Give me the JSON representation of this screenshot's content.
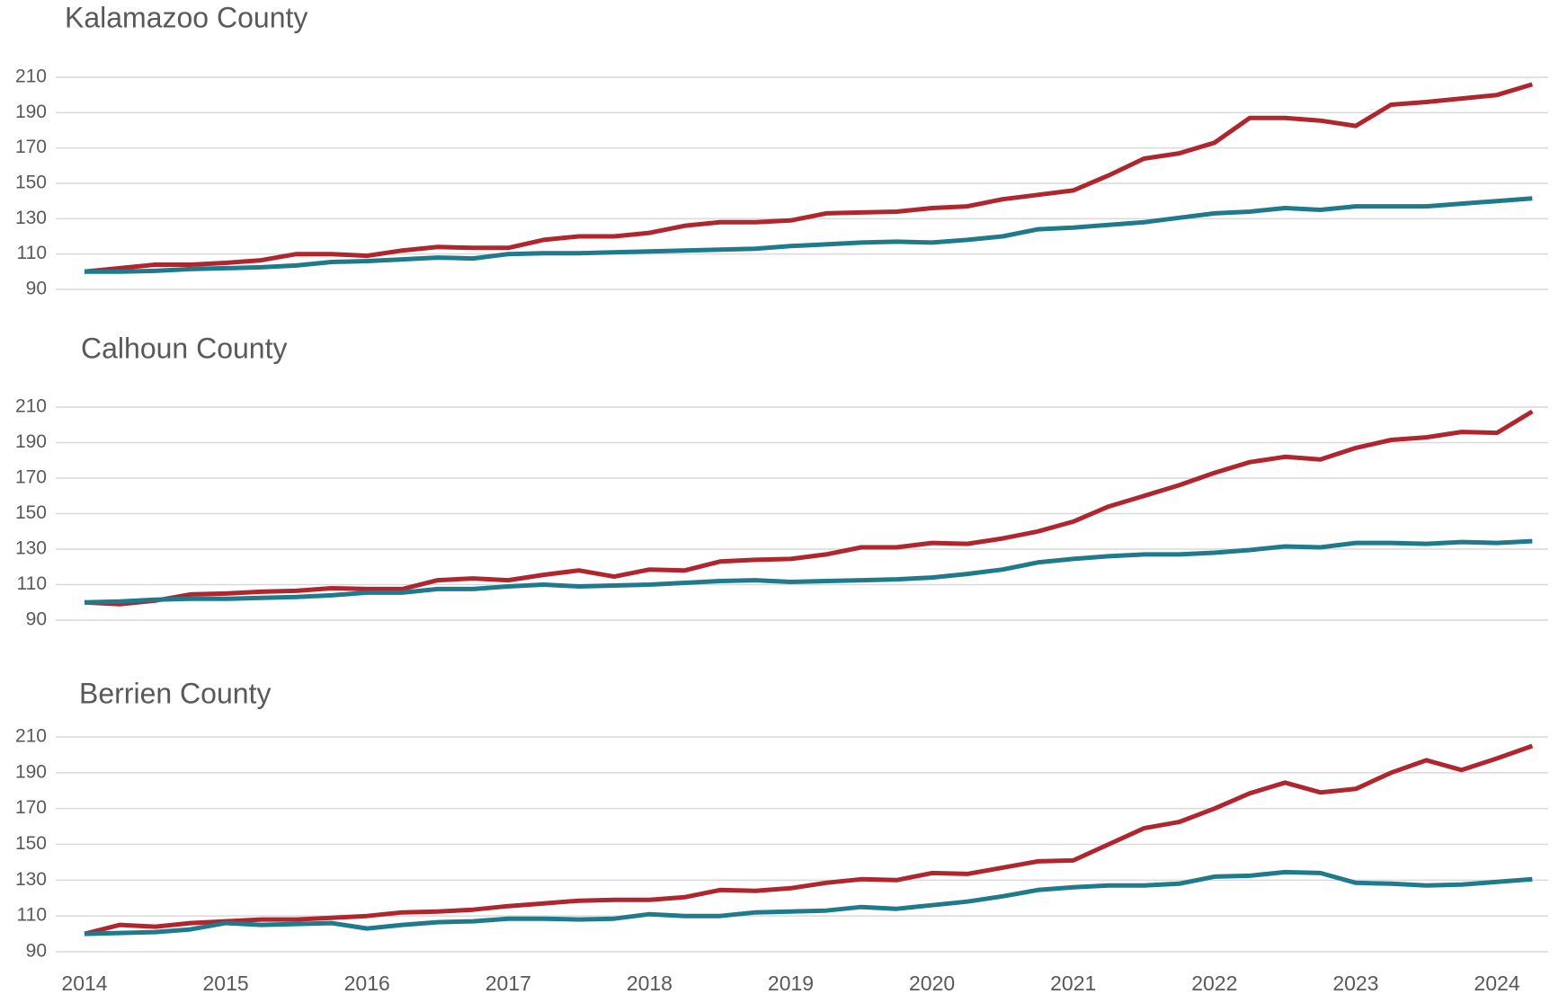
{
  "chart_data": [
    {
      "type": "line",
      "title": "Kalamazoo County",
      "ylim": [
        90,
        210
      ],
      "yticks": [
        90,
        110,
        130,
        150,
        170,
        190,
        210
      ],
      "grid": true,
      "series": [
        {
          "color": "#b0262f",
          "values": [
            100,
            102,
            104,
            104,
            105,
            106.5,
            110,
            110,
            109,
            112,
            114,
            113.5,
            113.5,
            118,
            120,
            120,
            122,
            126,
            128,
            128,
            129,
            133,
            133.5,
            134,
            136,
            137,
            141,
            143.5,
            146,
            154.5,
            164,
            167,
            173,
            187,
            187,
            185.5,
            182.5,
            194.5,
            196,
            198,
            200,
            206
          ]
        },
        {
          "color": "#1f7a8c",
          "values": [
            100,
            100,
            100.5,
            101.5,
            102,
            102.5,
            103.5,
            105.5,
            106,
            107,
            108,
            107.5,
            110,
            110.5,
            110.5,
            111,
            111.5,
            112,
            112.5,
            113,
            114.5,
            115.5,
            116.5,
            117,
            116.5,
            118,
            120,
            124,
            125,
            126.5,
            128,
            130.5,
            133,
            134,
            136,
            135,
            137,
            137,
            137,
            138.5,
            140,
            141.5
          ]
        }
      ]
    },
    {
      "type": "line",
      "title": "Calhoun County",
      "ylim": [
        90,
        210
      ],
      "yticks": [
        90,
        110,
        130,
        150,
        170,
        190,
        210
      ],
      "grid": true,
      "series": [
        {
          "color": "#b0262f",
          "values": [
            100,
            99,
            101,
            104.5,
            105,
            106,
            106.5,
            108,
            107.5,
            107.5,
            112.5,
            113.5,
            112.5,
            115.5,
            118,
            114.5,
            118.5,
            118,
            123,
            124,
            124.5,
            127,
            131,
            131,
            133.5,
            133,
            136,
            140,
            145.5,
            154,
            160,
            166,
            173,
            179,
            182,
            180.5,
            187,
            191.5,
            193,
            196,
            195.5,
            207.5
          ]
        },
        {
          "color": "#1f7a8c",
          "values": [
            100,
            100.5,
            101.5,
            102,
            102,
            102.5,
            103,
            104,
            105.5,
            105.5,
            107.5,
            107.5,
            109,
            110,
            109,
            109.5,
            110,
            111,
            112,
            112.5,
            111.5,
            112,
            112.5,
            113,
            114,
            116,
            118.5,
            122.5,
            124.5,
            126,
            127,
            127,
            128,
            129.5,
            131.5,
            131,
            133.5,
            133.5,
            133,
            134,
            133.5,
            134.5
          ]
        }
      ]
    },
    {
      "type": "line",
      "title": "Berrien County",
      "ylim": [
        90,
        210
      ],
      "yticks": [
        90,
        110,
        130,
        150,
        170,
        190,
        210
      ],
      "grid": true,
      "categories": [
        "2014",
        null,
        null,
        null,
        "2015",
        null,
        null,
        null,
        "2016",
        null,
        null,
        null,
        "2017",
        null,
        null,
        null,
        "2018",
        null,
        null,
        null,
        "2019",
        null,
        null,
        null,
        "2020",
        null,
        null,
        null,
        "2021",
        null,
        null,
        null,
        "2022",
        null,
        null,
        null,
        "2023",
        null,
        null,
        null,
        "2024",
        null
      ],
      "series": [
        {
          "color": "#b0262f",
          "values": [
            100,
            105,
            104,
            106,
            107,
            108,
            108,
            109,
            110,
            112,
            112.5,
            113.5,
            115.5,
            117,
            118.5,
            119,
            119,
            120.5,
            124.5,
            124,
            125.5,
            128.5,
            130.5,
            130,
            134,
            133.5,
            137,
            140.5,
            141,
            150,
            159,
            162.5,
            170,
            178.5,
            184.5,
            179,
            181,
            190,
            197,
            191.5,
            198,
            205
          ]
        },
        {
          "color": "#1f7a8c",
          "values": [
            100,
            100.5,
            101,
            102.5,
            106,
            105,
            105.5,
            106,
            103,
            105,
            106.5,
            107,
            108.5,
            108.5,
            108,
            108.5,
            111,
            110,
            110,
            112,
            112.5,
            113,
            115,
            114,
            116,
            118,
            121,
            124.5,
            126,
            127,
            127,
            128,
            132,
            132.5,
            134.5,
            134,
            128.5,
            128,
            127,
            127.5,
            129,
            130.5
          ]
        }
      ]
    }
  ]
}
